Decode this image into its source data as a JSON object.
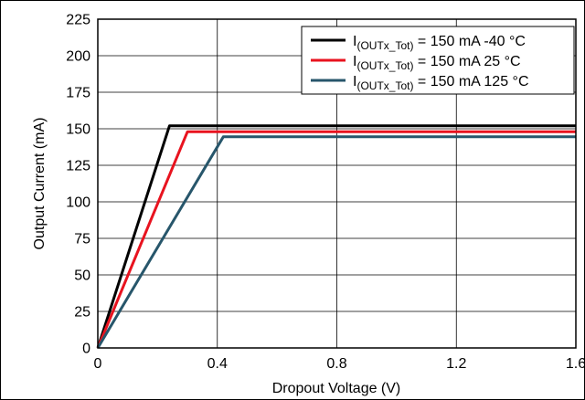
{
  "chart_data": {
    "type": "line",
    "xlabel": "Dropout Voltage (V)",
    "ylabel": "Output Current (mA)",
    "xlim": [
      0,
      1.6
    ],
    "ylim": [
      0,
      225
    ],
    "xticks": [
      "0",
      "0.4",
      "0.8",
      "1.2",
      "1.6"
    ],
    "yticks": [
      "0",
      "25",
      "50",
      "75",
      "100",
      "125",
      "150",
      "175",
      "200",
      "225"
    ],
    "grid": true,
    "legend_position": "top-right",
    "series": [
      {
        "label_main": "I",
        "label_sub": "(OUTx_Tot)",
        "label_rest": " = 150 mA -40 °C",
        "color": "#000000",
        "x": [
          0,
          0.24,
          1.6
        ],
        "y": [
          0,
          152,
          152
        ]
      },
      {
        "label_main": "I",
        "label_sub": "(OUTx_Tot)",
        "label_rest": " = 150 mA 25 °C",
        "color": "#e8131f",
        "x": [
          0,
          0.3,
          1.6
        ],
        "y": [
          0,
          148,
          148
        ]
      },
      {
        "label_main": "I",
        "label_sub": "(OUTx_Tot)",
        "label_rest": " = 150 mA 125 °C",
        "color": "#27566b",
        "x": [
          0,
          0.42,
          1.6
        ],
        "y": [
          0,
          144.5,
          144.5
        ]
      }
    ]
  }
}
